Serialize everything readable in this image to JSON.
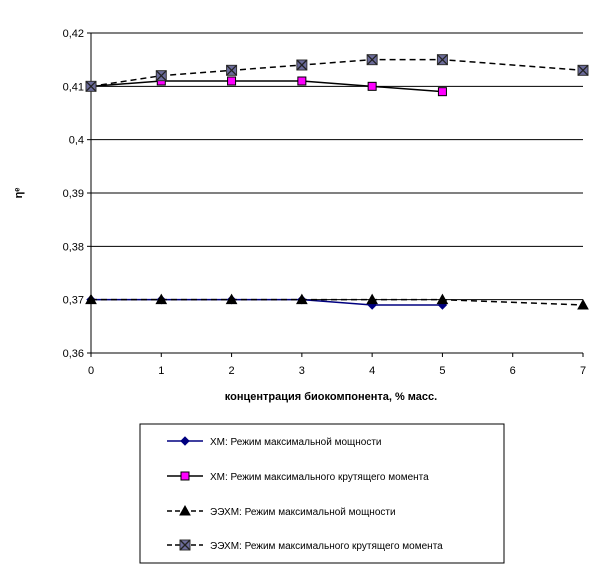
{
  "chart_data": {
    "type": "line",
    "xlabel": "концентрация биокомпонента, % масс.",
    "ylabel": "ηᵉ",
    "x_ticks": [
      "0",
      "1",
      "2",
      "3",
      "4",
      "5",
      "6",
      "7"
    ],
    "y_ticks": [
      "0,42",
      "0,41",
      "0,4",
      "0,39",
      "0,38",
      "0,37",
      "0,36"
    ],
    "xlim": [
      0,
      7
    ],
    "ylim": [
      0.36,
      0.42
    ],
    "grid": "horizontal",
    "legend_position": "bottom",
    "series": [
      {
        "name": "ХМ: Режим максимальной мощности",
        "x": [
          0,
          1,
          2,
          3,
          4,
          5
        ],
        "y": [
          0.37,
          0.37,
          0.37,
          0.37,
          0.369,
          0.369
        ],
        "color": "#000080",
        "marker": "diamond",
        "line": "solid"
      },
      {
        "name": "ХМ: Режим максимального крутящего момента",
        "x": [
          0,
          1,
          2,
          3,
          4,
          5
        ],
        "y": [
          0.41,
          0.411,
          0.411,
          0.411,
          0.41,
          0.409
        ],
        "color": "#ff00ff",
        "marker": "square",
        "line": "solid"
      },
      {
        "name": "ЭЭХМ: Режим максимальной мощности",
        "x": [
          0,
          1,
          2,
          3,
          4,
          5,
          7
        ],
        "y": [
          0.37,
          0.37,
          0.37,
          0.37,
          0.37,
          0.37,
          0.369
        ],
        "color": "#000000",
        "marker": "triangle",
        "line": "dashed"
      },
      {
        "name": "ЭЭХМ: Режим максимального крутящего момента",
        "x": [
          0,
          1,
          2,
          3,
          4,
          5,
          7
        ],
        "y": [
          0.41,
          0.412,
          0.413,
          0.414,
          0.415,
          0.415,
          0.413
        ],
        "color": "#6b6b9b",
        "marker": "square-x",
        "line": "dashed"
      }
    ]
  }
}
